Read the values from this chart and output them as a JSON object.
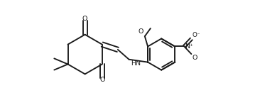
{
  "bg": "#ffffff",
  "lc": "#1a1a1a",
  "lw": 1.35,
  "fs": 6.8,
  "figsize": [
    3.66,
    1.55
  ],
  "dpi": 100,
  "xlim": [
    0.0,
    1.15
  ],
  "ylim": [
    0.28,
    1.08
  ],
  "hcx": 0.245,
  "hcy": 0.685,
  "hr": 0.145,
  "bcx": 0.805,
  "bcy": 0.685,
  "br": 0.115
}
